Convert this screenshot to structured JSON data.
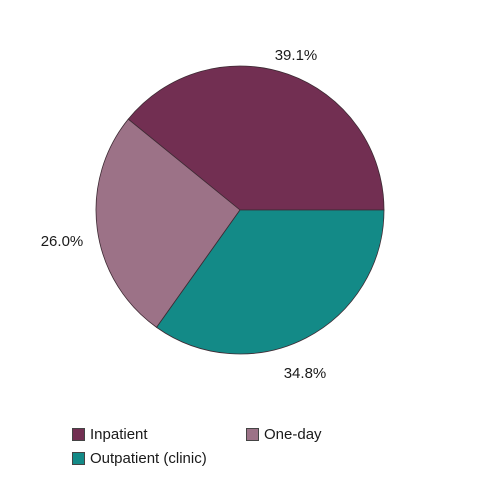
{
  "chart_data": {
    "type": "pie",
    "title": "",
    "slices": [
      {
        "name": "Inpatient",
        "value": 39.1,
        "label": "39.1%",
        "color": "#722f52"
      },
      {
        "name": "Outpatient (clinic)",
        "value": 34.8,
        "label": "34.8%",
        "color": "#138a87"
      },
      {
        "name": "One-day",
        "value": 26.0,
        "label": "26.0%",
        "color": "#9c7287"
      }
    ],
    "legend_position": "bottom"
  }
}
